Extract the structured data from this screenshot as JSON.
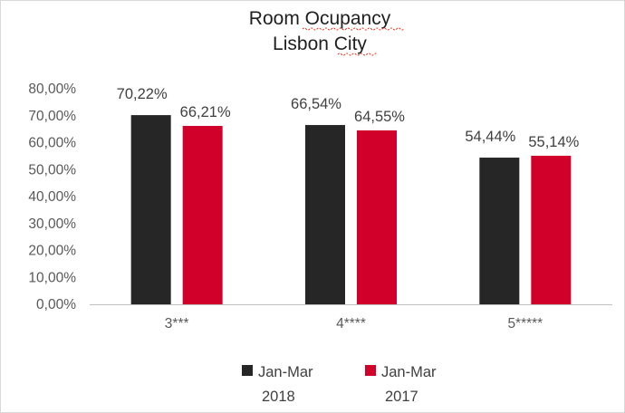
{
  "chart_data": {
    "type": "bar",
    "title": [
      "Room Ocupancy",
      "Lisbon City"
    ],
    "xlabel": "",
    "ylabel": "",
    "categories": [
      "3***",
      "4****",
      "5*****"
    ],
    "ylim": [
      0,
      80
    ],
    "yticks": [
      "0,00%",
      "10,00%",
      "20,00%",
      "30,00%",
      "40,00%",
      "50,00%",
      "60,00%",
      "70,00%",
      "80,00%"
    ],
    "series": [
      {
        "name": [
          "Jan-Mar",
          "2018"
        ],
        "color": "#262626",
        "values": [
          70.22,
          66.54,
          54.44
        ],
        "labels": [
          "70,22%",
          "66,54%",
          "54,44%"
        ]
      },
      {
        "name": [
          "Jan-Mar",
          "2017"
        ],
        "color": "#d0002b",
        "values": [
          66.21,
          64.55,
          55.14
        ],
        "labels": [
          "66,21%",
          "64,55%",
          "55,14%"
        ]
      }
    ],
    "grid": false,
    "legend": "bottom"
  }
}
